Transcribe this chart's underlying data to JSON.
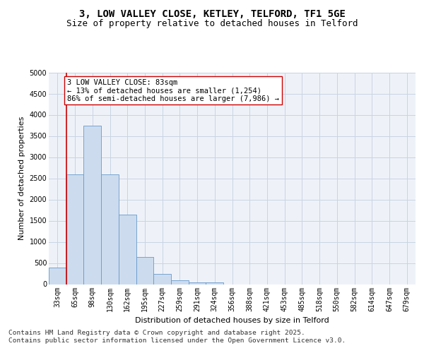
{
  "title_line1": "3, LOW VALLEY CLOSE, KETLEY, TELFORD, TF1 5GE",
  "title_line2": "Size of property relative to detached houses in Telford",
  "xlabel": "Distribution of detached houses by size in Telford",
  "ylabel": "Number of detached properties",
  "categories": [
    "33sqm",
    "65sqm",
    "98sqm",
    "130sqm",
    "162sqm",
    "195sqm",
    "227sqm",
    "259sqm",
    "291sqm",
    "324sqm",
    "356sqm",
    "388sqm",
    "421sqm",
    "453sqm",
    "485sqm",
    "518sqm",
    "550sqm",
    "582sqm",
    "614sqm",
    "647sqm",
    "679sqm"
  ],
  "values": [
    390,
    2600,
    3750,
    2600,
    1650,
    650,
    250,
    100,
    50,
    50,
    0,
    0,
    0,
    0,
    0,
    0,
    0,
    0,
    0,
    0,
    0
  ],
  "bar_color": "#ccdcee",
  "bar_edge_color": "#6699cc",
  "vline_color": "#cc0000",
  "annotation_text": "3 LOW VALLEY CLOSE: 83sqm\n← 13% of detached houses are smaller (1,254)\n86% of semi-detached houses are larger (7,986) →",
  "annotation_box_color": "#ffffff",
  "annotation_box_edge_color": "#cc0000",
  "ylim": [
    0,
    5000
  ],
  "yticks": [
    0,
    500,
    1000,
    1500,
    2000,
    2500,
    3000,
    3500,
    4000,
    4500,
    5000
  ],
  "grid_color": "#c8d4e4",
  "background_color": "#eef2f8",
  "footer_text": "Contains HM Land Registry data © Crown copyright and database right 2025.\nContains public sector information licensed under the Open Government Licence v3.0.",
  "title_fontsize": 10,
  "subtitle_fontsize": 9,
  "annotation_fontsize": 7.5,
  "footer_fontsize": 6.8,
  "axis_label_fontsize": 8,
  "tick_fontsize": 7
}
